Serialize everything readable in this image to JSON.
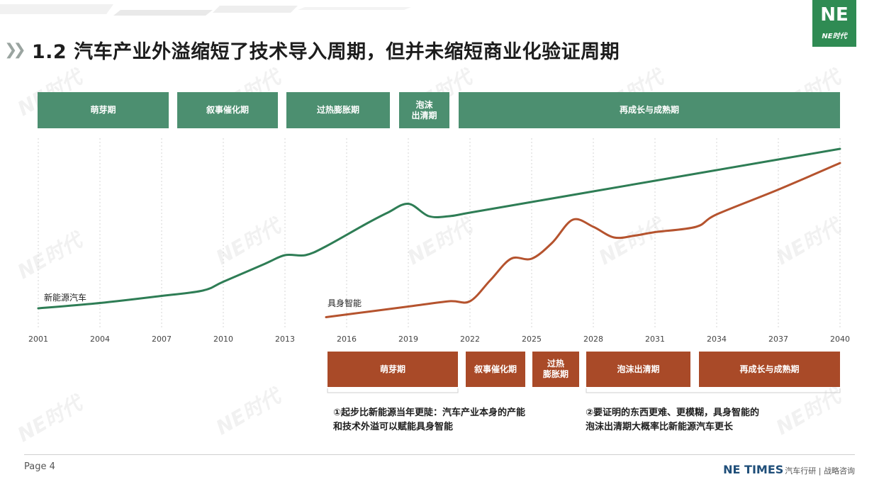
{
  "title": "1.2 汽车产业外溢缩短了技术导入周期，但并未缩短商业化验证周期",
  "title_icon": "double-chevron-icon",
  "logo": {
    "mark": "NE",
    "text": "NE时代"
  },
  "watermark": "NE时代",
  "colors": {
    "green": "#4c8f70",
    "line_green": "#2e7d55",
    "brown": "#a94a28",
    "line_brown": "#b5532e"
  },
  "top_phases": [
    "萌芽期",
    "叙事催化期",
    "过热膨胀期",
    "泡沫\n出清期",
    "再成长与成熟期"
  ],
  "bottom_phases": [
    "萌芽期",
    "叙事催化期",
    "过热\n膨胀期",
    "泡沫出清期",
    "再成长与成熟期"
  ],
  "notes": {
    "left": "①起步比新能源当年更陡：汽车产业本身的产能\n和技术外溢可以赋能具身智能",
    "right": "②要证明的东西更难、更模糊，具身智能的\n泡沫出清期大概率比新能源汽车更长"
  },
  "footer": {
    "page": "Page 4",
    "brand": "NE TIMES",
    "tagline": "汽车行研 | 战略咨询"
  },
  "chart_data": {
    "type": "line",
    "x_ticks": [
      "2001",
      "2004",
      "2007",
      "2010",
      "2013",
      "2016",
      "2019",
      "2022",
      "2025",
      "2028",
      "2031",
      "2034",
      "2037",
      "2040"
    ],
    "xlim": [
      2001,
      2040
    ],
    "ylim": [
      0,
      100
    ],
    "series": [
      {
        "name": "新能源汽车",
        "x": [
          2001,
          2004,
          2007,
          2009,
          2010,
          2012,
          2013,
          2014,
          2015,
          2017,
          2018,
          2019,
          2020,
          2021,
          2022,
          2025,
          2028,
          2031,
          2034,
          2037,
          2040
        ],
        "values": [
          8,
          11,
          15,
          18,
          23,
          33,
          38,
          38,
          43,
          56,
          62,
          67,
          60,
          60,
          62,
          68,
          74,
          80,
          86,
          92,
          98
        ]
      },
      {
        "name": "具身智能",
        "x": [
          2015,
          2017,
          2019,
          2021,
          2022,
          2023,
          2024,
          2025,
          2026,
          2027,
          2028,
          2029,
          2030,
          2031,
          2033,
          2034,
          2037,
          2040
        ],
        "values": [
          3,
          6,
          9,
          12,
          12,
          24,
          36,
          36,
          45,
          58,
          54,
          48,
          49,
          51,
          54,
          61,
          75,
          90
        ]
      }
    ]
  }
}
